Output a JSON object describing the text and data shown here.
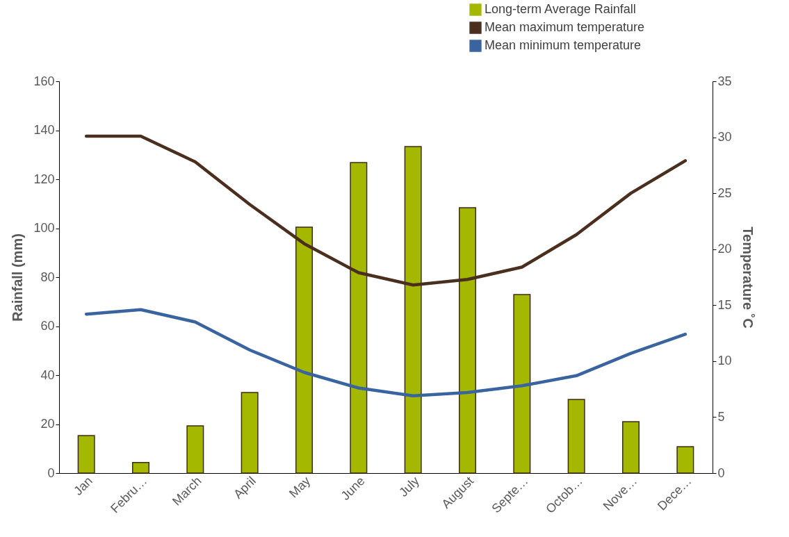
{
  "chart_data": {
    "type": "bar",
    "categories": [
      "Jan",
      "Febru…",
      "March",
      "April",
      "May",
      "June",
      "July",
      "August",
      "Septe…",
      "Octob…",
      "Nove…",
      "Dece…"
    ],
    "series": [
      {
        "name": "Long-term Average Rainfall",
        "color": "#a5b800",
        "values": [
          15.3,
          4.3,
          19.3,
          32.9,
          100.4,
          126.8,
          133.3,
          108.4,
          72.9,
          30.1,
          21,
          10.8
        ]
      },
      {
        "name": "Mean maximum temperature",
        "type": "line",
        "axis": "y2",
        "color": "#4a2e1e",
        "values": [
          30.1,
          30.1,
          27.8,
          24.0,
          20.5,
          17.9,
          16.8,
          17.3,
          18.4,
          21.3,
          25.0,
          27.9
        ]
      },
      {
        "name": "Mean minimum temperature",
        "type": "line",
        "axis": "y2",
        "color": "#3a64a0",
        "values": [
          14.2,
          14.6,
          13.5,
          11.0,
          9.0,
          7.6,
          6.9,
          7.2,
          7.8,
          8.7,
          10.7,
          12.4
        ]
      }
    ],
    "ylabel": "Rainfall (mm)",
    "y2label": "Temperature ˚C",
    "ylim": [
      0,
      160
    ],
    "yticks": [
      0,
      20,
      40,
      60,
      80,
      100,
      120,
      140,
      160
    ],
    "y2lim": [
      0,
      35
    ],
    "y2ticks": [
      0,
      5,
      10,
      15,
      20,
      25,
      30,
      35
    ],
    "legend": "top right",
    "grid": false
  }
}
